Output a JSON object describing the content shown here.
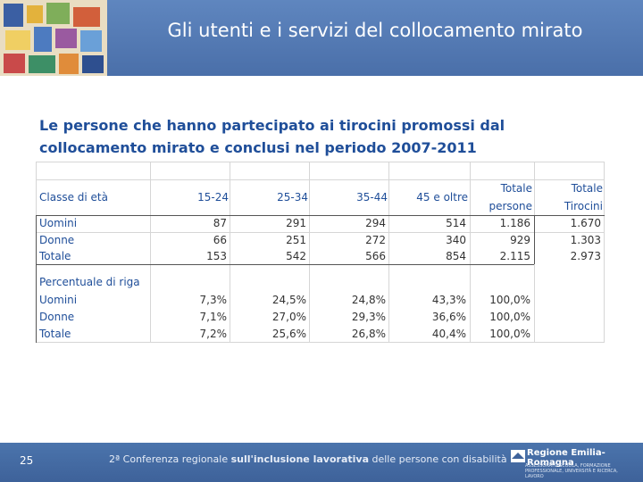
{
  "header": {
    "title": "Gli utenti e i servizi del collocamento mirato"
  },
  "table": {
    "title": "Le persone che hanno partecipato ai tirocini promossi dal collocamento mirato e conclusi nel periodo 2007-2011",
    "columns": [
      "Classe di età",
      "15-24",
      "25-34",
      "35-44",
      "45 e oltre",
      "Totale persone",
      "Totale Tirocini"
    ],
    "rows": [
      {
        "label": "Uomini",
        "values": [
          "87",
          "291",
          "294",
          "514",
          "1.186",
          "1.670"
        ]
      },
      {
        "label": "Donne",
        "values": [
          "66",
          "251",
          "272",
          "340",
          "929",
          "1.303"
        ]
      },
      {
        "label": "Totale",
        "values": [
          "153",
          "542",
          "566",
          "854",
          "2.115",
          "2.973"
        ]
      }
    ],
    "pct_section_label": "Percentuale di riga",
    "pct_rows": [
      {
        "label": "Uomini",
        "values": [
          "7,3%",
          "24,5%",
          "24,8%",
          "43,3%",
          "100,0%"
        ]
      },
      {
        "label": "Donne",
        "values": [
          "7,1%",
          "27,0%",
          "29,3%",
          "36,6%",
          "100,0%"
        ]
      },
      {
        "label": "Totale",
        "values": [
          "7,2%",
          "25,6%",
          "26,8%",
          "40,4%",
          "100,0%"
        ]
      }
    ]
  },
  "footer": {
    "page_number": "25",
    "conference_prefix": "2ª Conferenza regionale ",
    "conference_bold": "sull'inclusione lavorativa",
    "conference_suffix": " delle persone con disabilità",
    "logo_name": "Regione Emilia-Romagna",
    "logo_sub": "ASSESSORATO SCUOLA, FORMAZIONE PROFESSIONALE, UNIVERSITÀ E RICERCA, LAVORO"
  },
  "colors": {
    "header_bg": "#5f86bf",
    "footer_bg": "#4b74ac",
    "accent_blue": "#1f4e99"
  }
}
